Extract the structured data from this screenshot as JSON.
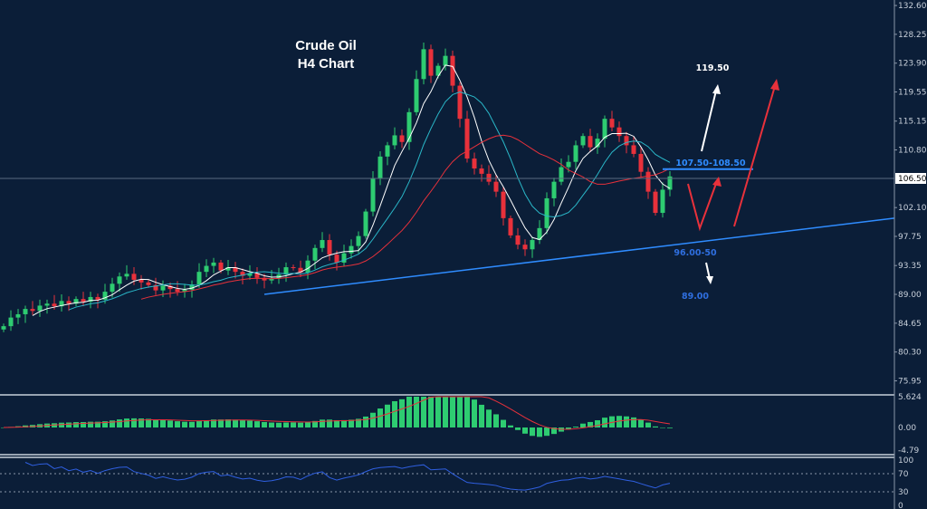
{
  "chart_data": {
    "type": "candlestick",
    "title": [
      "Crude Oil",
      "H4 Chart"
    ],
    "y_ticks": [
      "132.60",
      "128.25",
      "123.90",
      "119.55",
      "115.15",
      "110.80",
      "102.10",
      "97.75",
      "93.35",
      "89.00",
      "84.65",
      "80.30",
      "75.95"
    ],
    "ylim": [
      73.5,
      133.5
    ],
    "current_price": 106.5,
    "current_price_label": "106.50",
    "closes": [
      84.2,
      85.5,
      86.0,
      86.8,
      86.5,
      87.3,
      87.6,
      87.2,
      88.0,
      87.6,
      88.3,
      87.9,
      88.6,
      88.2,
      89.4,
      90.6,
      91.7,
      92.1,
      91.2,
      90.8,
      90.4,
      89.6,
      90.3,
      89.8,
      89.4,
      89.7,
      90.5,
      92.4,
      93.3,
      93.8,
      92.6,
      93.1,
      92.4,
      91.8,
      92.2,
      91.5,
      91.1,
      91.4,
      92.0,
      93.1,
      93.0,
      92.3,
      94.1,
      96.0,
      97.2,
      95.0,
      93.8,
      95.2,
      96.3,
      97.8,
      101.5,
      106.5,
      109.8,
      111.5,
      113.0,
      112.0,
      116.5,
      121.5,
      126.0,
      122.0,
      123.5,
      125.0,
      120.5,
      115.5,
      109.5,
      108.0,
      107.2,
      106.0,
      104.5,
      100.5,
      97.9,
      96.5,
      95.8,
      97.2,
      99.0,
      103.5,
      106.0,
      108.2,
      109.0,
      111.5,
      112.9,
      111.2,
      112.5,
      115.5,
      114.2,
      112.9,
      111.5,
      110.2,
      107.5,
      104.5,
      101.3,
      104.8,
      106.8
    ],
    "moving_averages": [
      {
        "period": 5,
        "color": "#ffffff"
      },
      {
        "period": 10,
        "color": "#2ab7c8"
      },
      {
        "period": 20,
        "color": "#e8313b"
      }
    ],
    "trendline": {
      "points": [
        [
          36,
          89.0
        ],
        [
          123,
          100.5
        ]
      ],
      "color": "#2f8cff"
    },
    "resistance_zone": {
      "price": 107.9,
      "from_index": 91,
      "to_index": 103.5,
      "color": "#2f8cff"
    },
    "annotations": [
      {
        "text": "119.50",
        "color": "#ffffff"
      },
      {
        "text": "107.50-108.50",
        "color": "#2f8cff"
      },
      {
        "text": "96.00-50",
        "color": "#2f6fe0"
      },
      {
        "text": "89.00",
        "color": "#2f6fe0"
      }
    ],
    "macd": {
      "y_ticks": [
        "5.624",
        "0.00",
        "-4.79"
      ],
      "ylim": [
        -4.79,
        5.624
      ],
      "fast": 12,
      "slow": 26,
      "signal": 9
    },
    "rsi": {
      "y_ticks": [
        "100",
        "70",
        "30",
        "0"
      ],
      "levels": [
        70,
        30
      ],
      "period": 14,
      "color": "#2f5fe0"
    }
  },
  "colors": {
    "background": "#0b1e38",
    "up": "#2ecc71",
    "down": "#e8313b"
  }
}
